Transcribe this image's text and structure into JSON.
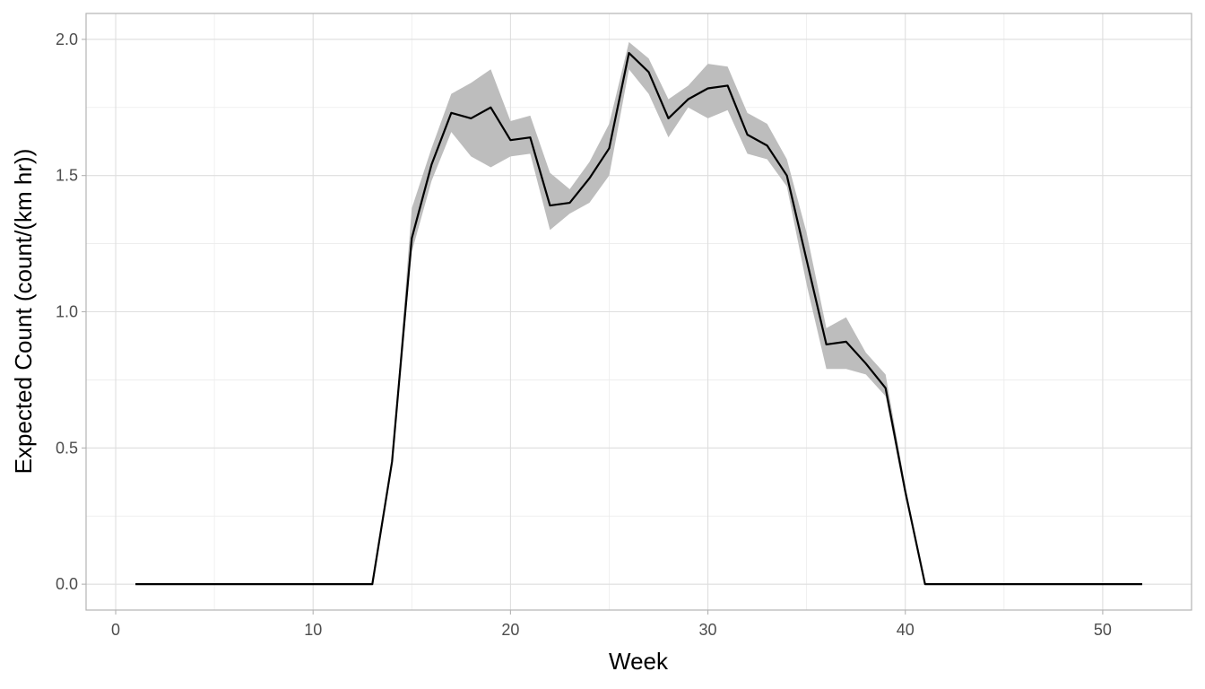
{
  "chart_data": {
    "type": "line",
    "xlabel": "Week",
    "ylabel": "Expected Count (count/(km hr))",
    "xlim": [
      -1.5,
      54.5
    ],
    "ylim": [
      -0.095,
      2.095
    ],
    "x_ticks": [
      0,
      10,
      20,
      30,
      40,
      50
    ],
    "x_tick_labels": [
      "0",
      "10",
      "20",
      "30",
      "40",
      "50"
    ],
    "y_ticks": [
      0.0,
      0.5,
      1.0,
      1.5,
      2.0
    ],
    "y_tick_labels": [
      "0.0",
      "0.5",
      "1.0",
      "1.5",
      "2.0"
    ],
    "x_minor_ticks": [
      5,
      15,
      25,
      35,
      45
    ],
    "y_minor_ticks": [
      0.25,
      0.75,
      1.25,
      1.75
    ],
    "grid": true,
    "series": [
      {
        "line_color": "#000000",
        "band_color": "#bdbdbd",
        "x": [
          1,
          2,
          3,
          4,
          5,
          6,
          7,
          8,
          9,
          10,
          11,
          12,
          13,
          14,
          15,
          16,
          17,
          18,
          19,
          20,
          21,
          22,
          23,
          24,
          25,
          26,
          27,
          28,
          29,
          30,
          31,
          32,
          33,
          34,
          35,
          36,
          37,
          38,
          39,
          40,
          41,
          42,
          43,
          44,
          45,
          46,
          47,
          48,
          49,
          50,
          51,
          52
        ],
        "y": [
          0,
          0,
          0,
          0,
          0,
          0,
          0,
          0,
          0,
          0,
          0,
          0,
          0,
          0.45,
          1.27,
          1.54,
          1.73,
          1.71,
          1.75,
          1.63,
          1.64,
          1.39,
          1.4,
          1.49,
          1.6,
          1.95,
          1.88,
          1.71,
          1.78,
          1.82,
          1.83,
          1.65,
          1.61,
          1.5,
          1.19,
          0.88,
          0.89,
          0.81,
          0.72,
          0.34,
          0,
          0,
          0,
          0,
          0,
          0,
          0,
          0,
          0,
          0,
          0,
          0
        ],
        "lower": [
          0,
          0,
          0,
          0,
          0,
          0,
          0,
          0,
          0,
          0,
          0,
          0,
          0,
          0.45,
          1.22,
          1.48,
          1.66,
          1.57,
          1.53,
          1.57,
          1.58,
          1.3,
          1.36,
          1.4,
          1.5,
          1.89,
          1.8,
          1.64,
          1.75,
          1.71,
          1.74,
          1.58,
          1.56,
          1.46,
          1.1,
          0.79,
          0.79,
          0.77,
          0.69,
          0.32,
          0,
          0,
          0,
          0,
          0,
          0,
          0,
          0,
          0,
          0,
          0,
          0
        ],
        "upper": [
          0,
          0,
          0,
          0,
          0,
          0,
          0,
          0,
          0,
          0,
          0,
          0,
          0,
          0.45,
          1.38,
          1.6,
          1.8,
          1.84,
          1.89,
          1.7,
          1.72,
          1.51,
          1.45,
          1.55,
          1.69,
          1.99,
          1.93,
          1.78,
          1.83,
          1.91,
          1.9,
          1.73,
          1.69,
          1.56,
          1.29,
          0.94,
          0.98,
          0.85,
          0.77,
          0.36,
          0,
          0,
          0,
          0,
          0,
          0,
          0,
          0,
          0,
          0,
          0,
          0
        ]
      }
    ]
  }
}
